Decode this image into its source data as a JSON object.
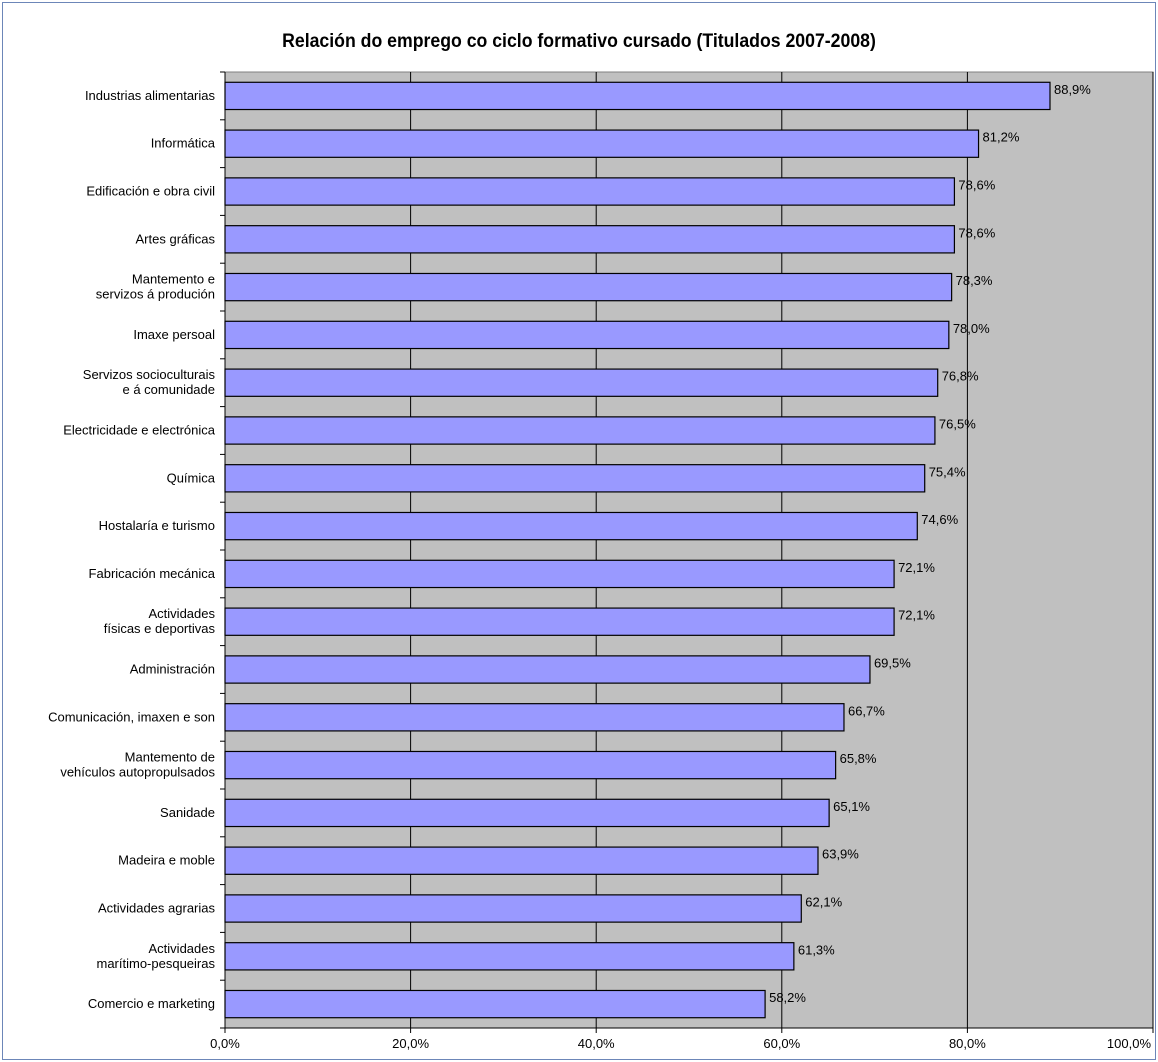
{
  "chart_data": {
    "type": "bar",
    "orientation": "horizontal",
    "title": "Relación do emprego co ciclo formativo cursado (Titulados 2007-2008)",
    "categories": [
      [
        "Industrias alimentarias"
      ],
      [
        "Informática"
      ],
      [
        "Edificación e obra civil"
      ],
      [
        "Artes gráficas"
      ],
      [
        "Mantemento e",
        "servizos á produción"
      ],
      [
        "Imaxe persoal"
      ],
      [
        "Servizos socioculturais",
        "e á comunidade"
      ],
      [
        "Electricidade e electrónica"
      ],
      [
        "Química"
      ],
      [
        "Hostalaría e turismo"
      ],
      [
        "Fabricación mecánica"
      ],
      [
        "Actividades",
        "físicas e deportivas"
      ],
      [
        "Administración"
      ],
      [
        "Comunicación, imaxen e son"
      ],
      [
        "Mantemento de",
        "vehículos autopropulsados"
      ],
      [
        "Sanidade"
      ],
      [
        "Madeira e moble"
      ],
      [
        "Actividades agrarias"
      ],
      [
        "Actividades",
        "marítimo-pesqueiras"
      ],
      [
        "Comercio e marketing"
      ]
    ],
    "values": [
      88.9,
      81.2,
      78.6,
      78.6,
      78.3,
      78.0,
      76.8,
      76.5,
      75.4,
      74.6,
      72.1,
      72.1,
      69.5,
      66.7,
      65.8,
      65.1,
      63.9,
      62.1,
      61.3,
      58.2
    ],
    "value_labels": [
      "88,9%",
      "81,2%",
      "78,6%",
      "78,6%",
      "78,3%",
      "78,0%",
      "76,8%",
      "76,5%",
      "75,4%",
      "74,6%",
      "72,1%",
      "72,1%",
      "69,5%",
      "66,7%",
      "65,8%",
      "65,1%",
      "63,9%",
      "62,1%",
      "61,3%",
      "58,2%"
    ],
    "xlim": [
      0,
      100
    ],
    "xticks": [
      0,
      20,
      40,
      60,
      80,
      100
    ],
    "xtick_labels": [
      "0,0%",
      "20,0%",
      "40,0%",
      "60,0%",
      "80,0%",
      "100,0%"
    ],
    "grid": true,
    "colors": {
      "bar_fill": "#9999ff",
      "bar_stroke": "#000000",
      "plot_background": "#c0c0c0",
      "gridline": "#000000"
    }
  }
}
